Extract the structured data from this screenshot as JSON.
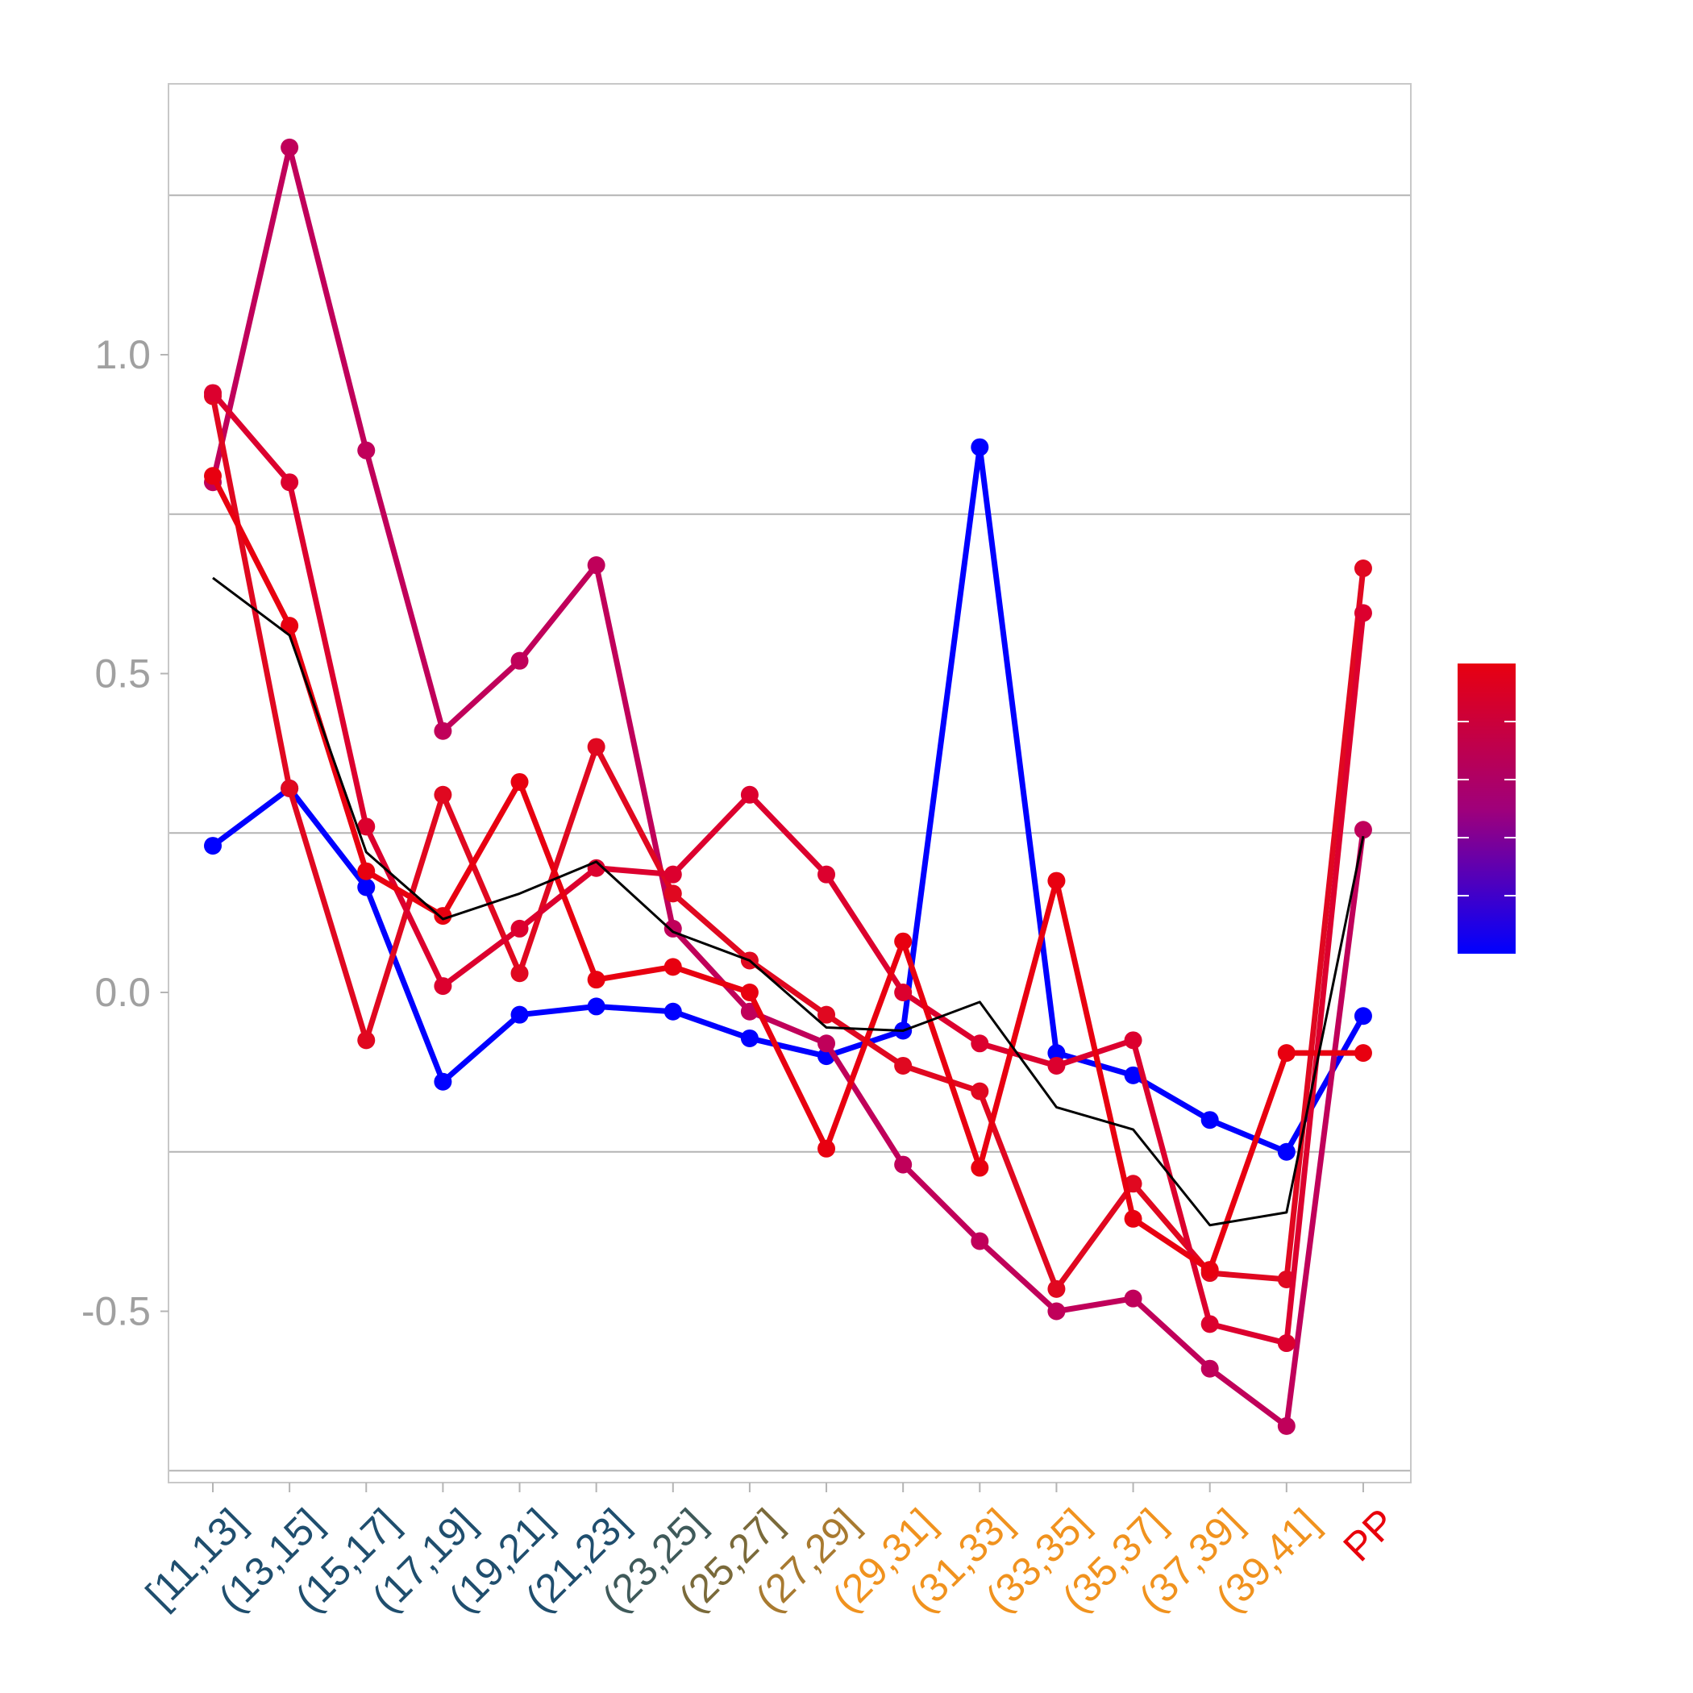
{
  "chart_data": {
    "type": "line",
    "categories": [
      "[11,13]",
      "(13,15]",
      "(15,17]",
      "(17,19]",
      "(19,21]",
      "(21,23]",
      "(23,25]",
      "(25,27]",
      "(27,29]",
      "(29,31]",
      "(31,33]",
      "(33,35]",
      "(35,37]",
      "(37,39]",
      "(39,41]",
      "PP"
    ],
    "category_colors": [
      "#1f4e6e",
      "#1f4e6e",
      "#1f4e6e",
      "#1f4e6e",
      "#1f4e6e",
      "#1f4e6e",
      "#3f5a5a",
      "#7a6a3a",
      "#a87a30",
      "#f0921e",
      "#f0921e",
      "#f0921e",
      "#f0921e",
      "#f0921e",
      "#f0921e",
      "#e8000b"
    ],
    "ylim": [
      -0.75,
      1.42
    ],
    "yticks": [
      -0.5,
      0.0,
      0.5,
      1.0
    ],
    "ytick_labels": [
      "-0.5",
      "0.0",
      "0.5",
      "1.0"
    ],
    "gridlines": [
      -0.75,
      -0.25,
      0.25,
      0.75,
      1.25
    ],
    "series": [
      {
        "color": "#0000ff",
        "values": [
          0.23,
          0.32,
          0.165,
          -0.14,
          -0.035,
          -0.022,
          -0.03,
          -0.072,
          -0.1,
          -0.06,
          0.855,
          -0.095,
          -0.13,
          -0.2,
          -0.25,
          -0.037
        ]
      },
      {
        "color": "#c0005a",
        "values": [
          0.8,
          1.325,
          0.85,
          0.41,
          0.52,
          0.67,
          0.1,
          -0.03,
          -0.08,
          -0.27,
          -0.39,
          -0.5,
          -0.48,
          -0.59,
          -0.68,
          0.255
        ]
      },
      {
        "color": "#e00820",
        "values": [
          0.935,
          0.32,
          -0.075,
          0.31,
          0.03,
          0.385,
          0.155,
          0.05,
          -0.035,
          -0.115,
          -0.155,
          -0.465,
          -0.3,
          -0.44,
          -0.45,
          0.665
        ]
      },
      {
        "color": "#dc002e",
        "values": [
          0.94,
          0.8,
          0.26,
          0.01,
          0.1,
          0.195,
          0.185,
          0.31,
          0.185,
          0.0,
          -0.08,
          -0.115,
          -0.075,
          -0.52,
          -0.55,
          0.595
        ]
      },
      {
        "color": "#e80010",
        "values": [
          0.81,
          0.575,
          0.19,
          0.12,
          0.33,
          0.02,
          0.04,
          0.0,
          -0.245,
          0.08,
          -0.275,
          0.175,
          -0.355,
          -0.435,
          -0.095,
          -0.095
        ]
      },
      {
        "color": "#000000",
        "values": [
          0.65,
          0.56,
          0.22,
          0.115,
          0.155,
          0.205,
          0.095,
          0.05,
          -0.055,
          -0.06,
          -0.015,
          -0.18,
          -0.215,
          -0.365,
          -0.345,
          0.245
        ]
      }
    ],
    "legend": {
      "type": "colorbar",
      "placement": "right",
      "colors": [
        "#0000ff",
        "#a0007a",
        "#e80010"
      ]
    }
  }
}
